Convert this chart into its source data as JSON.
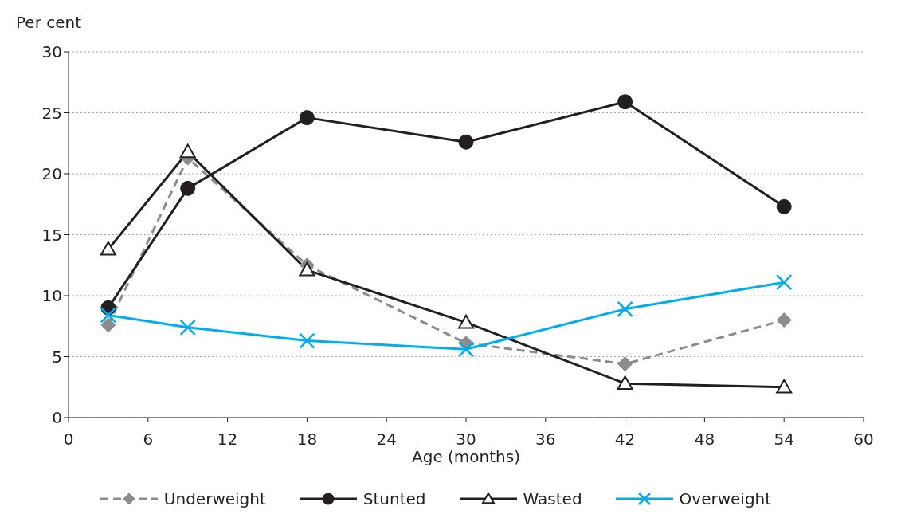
{
  "chart_data": {
    "type": "line",
    "xlabel": "Age (months)",
    "ylabel": "Per cent",
    "xlim": [
      0,
      60
    ],
    "xticks": [
      0,
      6,
      12,
      18,
      24,
      30,
      36,
      42,
      48,
      54,
      60
    ],
    "ylim": [
      0,
      30
    ],
    "yticks": [
      0,
      5,
      10,
      15,
      20,
      25,
      30
    ],
    "grid": "y",
    "legend": "bottom",
    "series": [
      {
        "name": "Underweight",
        "color": "#8c8c8c",
        "marker": "diamond",
        "line_style": "dashed",
        "x": [
          3,
          9,
          18,
          30,
          42,
          54
        ],
        "values": [
          7.6,
          21.3,
          12.5,
          6.1,
          4.4,
          8.0
        ]
      },
      {
        "name": "Stunted",
        "color": "#231f20",
        "marker": "circle",
        "line_style": "solid",
        "x": [
          3,
          9,
          18,
          30,
          42,
          54
        ],
        "values": [
          9.0,
          18.8,
          24.6,
          22.6,
          25.9,
          17.3
        ]
      },
      {
        "name": "Wasted",
        "color": "#231f20",
        "marker": "triangle",
        "line_style": "solid",
        "x": [
          3,
          9,
          18,
          30,
          42,
          54
        ],
        "values": [
          13.8,
          21.8,
          12.1,
          7.8,
          2.8,
          2.5
        ]
      },
      {
        "name": "Overweight",
        "color": "#00aeef",
        "marker": "cross",
        "line_style": "solid",
        "x": [
          3,
          9,
          18,
          30,
          42,
          54
        ],
        "values": [
          8.4,
          7.4,
          6.3,
          5.6,
          8.9,
          11.1
        ]
      }
    ]
  }
}
